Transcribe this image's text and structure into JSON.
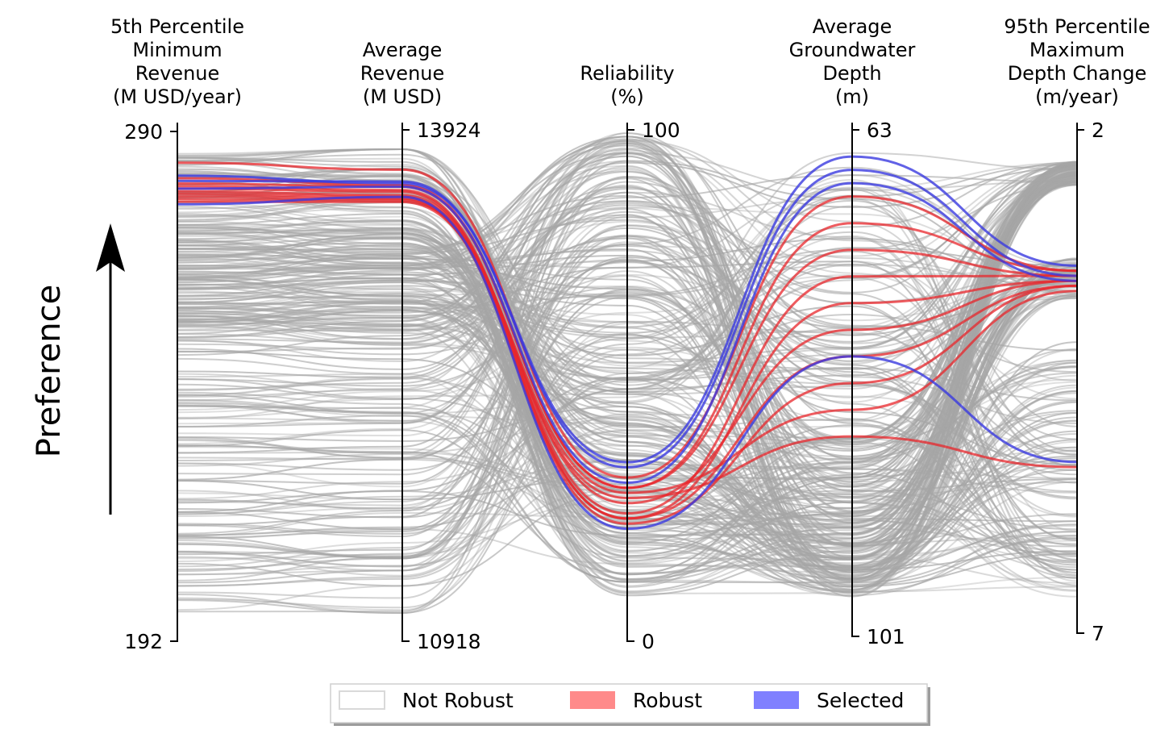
{
  "chart_data": {
    "type": "parallel-coordinates",
    "y_direction_label": "Preference",
    "axes": [
      {
        "title": [
          "5th Percentile",
          "Minimum",
          "Revenue",
          "(M USD/year)"
        ],
        "top": 290,
        "bottom": 192
      },
      {
        "title": [
          "Average",
          "Revenue",
          "(M USD)"
        ],
        "top": 13924,
        "bottom": 10918
      },
      {
        "title": [
          "Reliability",
          "(%)"
        ],
        "top": 100,
        "bottom": 0
      },
      {
        "title": [
          "Average",
          "Groundwater",
          "Depth",
          "(m)"
        ],
        "top": 63,
        "bottom": 101
      },
      {
        "title": [
          "95th Percentile",
          "Maximum",
          "Depth Change",
          "(m/year)"
        ],
        "top": 2,
        "bottom": 7
      }
    ],
    "legend": [
      {
        "label": "Not Robust",
        "color": "#d9d9d9"
      },
      {
        "label": "Robust",
        "color": "#ff8a8a"
      },
      {
        "label": "Selected",
        "color": "#8080ff"
      }
    ],
    "series": {
      "not_robust_color": "#a6a6a6",
      "not_robust_count": 300,
      "robust_color": "#e8262b",
      "robust": [
        [
          284.0,
          13690,
          32,
          68.0,
          3.4
        ],
        [
          280.0,
          13590,
          30,
          70.0,
          3.4
        ],
        [
          279.5,
          13570,
          25,
          74.0,
          3.45
        ],
        [
          279.0,
          13560,
          24,
          76.0,
          3.5
        ],
        [
          278.5,
          13540,
          27,
          78.0,
          3.5
        ],
        [
          278.0,
          13530,
          24,
          80.0,
          3.55
        ],
        [
          277.5,
          13520,
          23,
          82.0,
          3.55
        ],
        [
          277.0,
          13510,
          29,
          84.0,
          3.6
        ],
        [
          276.5,
          13500,
          28,
          86.0,
          5.35
        ],
        [
          281.0,
          13600,
          30,
          72.0,
          3.45
        ]
      ],
      "selected_color": "#3a3ae0",
      "selected": [
        [
          281.5,
          13610,
          35,
          65.0,
          3.35
        ],
        [
          280.5,
          13620,
          34,
          66.0,
          3.45
        ],
        [
          279.0,
          13590,
          31,
          67.0,
          3.5
        ],
        [
          276.0,
          13530,
          22,
          80.0,
          5.3
        ]
      ]
    }
  }
}
